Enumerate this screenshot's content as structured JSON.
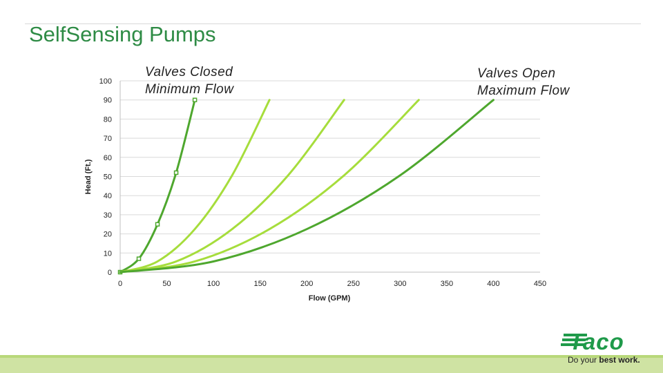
{
  "slide": {
    "title": "SelfSensing Pumps"
  },
  "annotations": {
    "closed_line1": "Valves Closed",
    "closed_line2": "Minimum Flow",
    "open_line1": "Valves Open",
    "open_line2": "Maximum Flow"
  },
  "logo": {
    "word": "Taco",
    "tagline_prefix": "Do your ",
    "tagline_bold": "best work."
  },
  "colors": {
    "title": "#2e8b45",
    "dark_green": "#4ea72e",
    "light_green": "#a6dd3c",
    "band": "#cfe3a3"
  },
  "chart_data": {
    "type": "scatter",
    "xlabel": "Flow (GPM)",
    "ylabel": "Head (Ft.)",
    "xlim": [
      0,
      450
    ],
    "ylim": [
      0,
      100
    ],
    "xticks": [
      0,
      50,
      100,
      150,
      200,
      250,
      300,
      350,
      400,
      450
    ],
    "yticks": [
      0,
      10,
      20,
      30,
      40,
      50,
      60,
      70,
      80,
      90,
      100
    ],
    "grid": "horizontal",
    "series": [
      {
        "color": "#4ea72e",
        "markers": true,
        "points": [
          [
            0,
            0
          ],
          [
            20,
            7
          ],
          [
            40,
            25
          ],
          [
            60,
            52
          ],
          [
            80,
            90
          ]
        ]
      },
      {
        "color": "#a6dd3c",
        "markers": false,
        "points": [
          [
            0,
            0
          ],
          [
            40,
            5.6
          ],
          [
            80,
            22.5
          ],
          [
            120,
            50.6
          ],
          [
            160,
            90
          ]
        ]
      },
      {
        "color": "#a6dd3c",
        "markers": false,
        "points": [
          [
            0,
            0
          ],
          [
            60,
            5.6
          ],
          [
            120,
            22.5
          ],
          [
            180,
            50.6
          ],
          [
            240,
            90
          ]
        ]
      },
      {
        "color": "#a6dd3c",
        "markers": false,
        "points": [
          [
            0,
            0
          ],
          [
            80,
            5.6
          ],
          [
            160,
            22.5
          ],
          [
            240,
            50.6
          ],
          [
            320,
            90
          ]
        ]
      },
      {
        "color": "#4ea72e",
        "markers": false,
        "points": [
          [
            0,
            0
          ],
          [
            100,
            5.6
          ],
          [
            200,
            22.5
          ],
          [
            300,
            50.6
          ],
          [
            400,
            90
          ]
        ]
      }
    ]
  }
}
